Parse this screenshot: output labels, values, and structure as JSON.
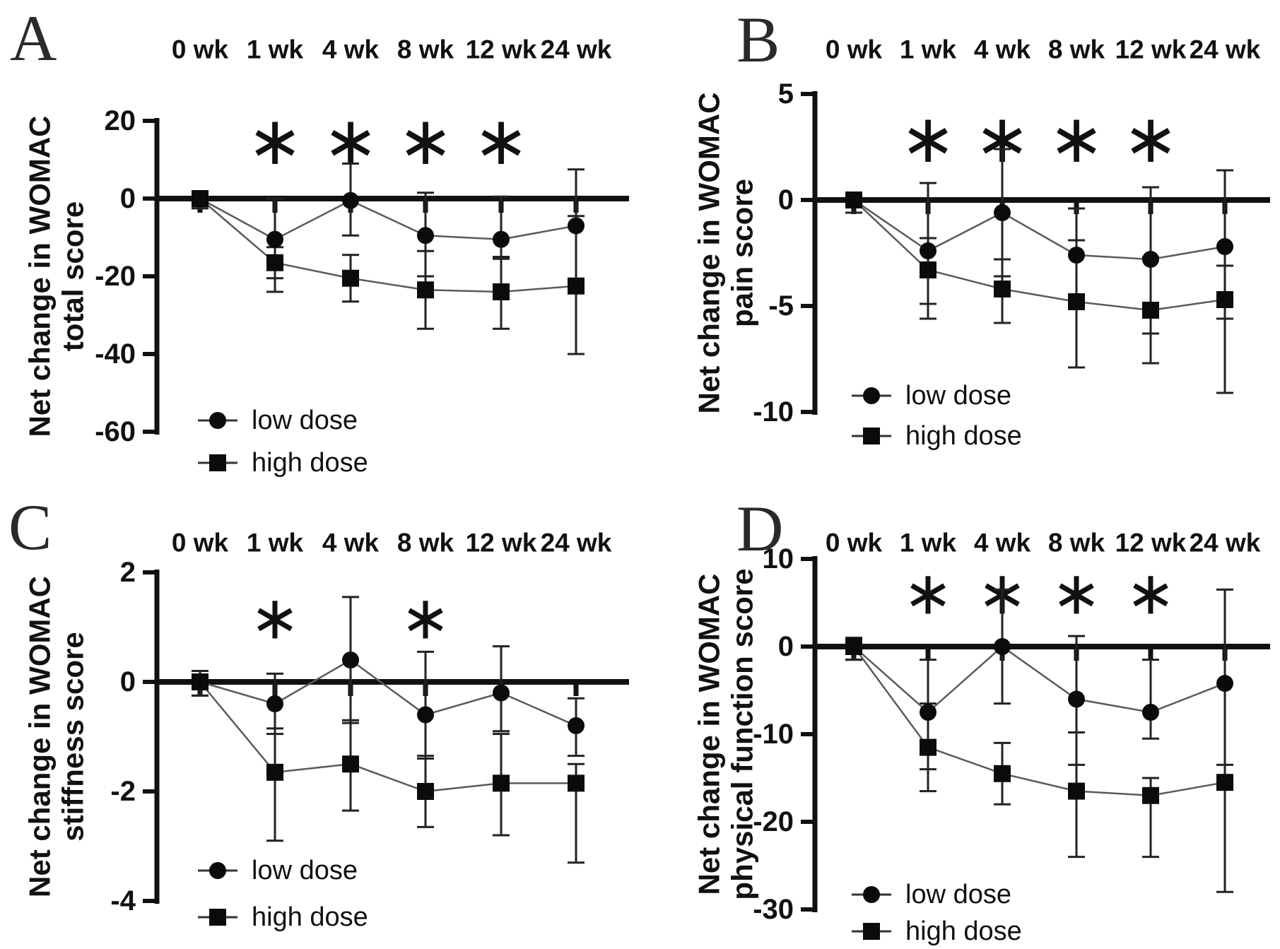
{
  "figure": {
    "sig_char": "∗",
    "colors": {
      "ink": "#111111",
      "series_line": "#5a5a5a",
      "marker_fill": "#0b0b0b",
      "background": "#ffffff"
    }
  },
  "chart_data": [
    {
      "panel": "A",
      "type": "line",
      "title": "Net change in WOMAC total score",
      "ylabel_lines": [
        "Net change in WOMAC",
        "total score"
      ],
      "x_labels": [
        "0 wk",
        "1 wk",
        "4 wk",
        "8 wk",
        "12 wk",
        "24 wk"
      ],
      "yticks": [
        20,
        0,
        -20,
        -40,
        -60
      ],
      "ylim": [
        -60,
        20
      ],
      "grid": false,
      "legend_position": "bottom-left",
      "significance_at": [
        "1 wk",
        "4 wk",
        "8 wk",
        "12 wk"
      ],
      "series": [
        {
          "name": "low dose",
          "marker": "circle",
          "values": [
            0,
            -10.5,
            -0.5,
            -9.5,
            -10.5,
            -7
          ],
          "err_upper": [
            0,
            0,
            9,
            1.5,
            0.5,
            7.5
          ],
          "err_lower": [
            -2.5,
            -20.5,
            -9.5,
            -20,
            -15.5,
            -21.5
          ]
        },
        {
          "name": "high dose",
          "marker": "square",
          "values": [
            0,
            -16.5,
            -20.5,
            -23.5,
            -24,
            -22.5
          ],
          "err_upper": [
            0,
            -12.5,
            -14.5,
            -13.5,
            -15,
            -4.5
          ],
          "err_lower": [
            -2.5,
            -24,
            -26.5,
            -33.5,
            -33.5,
            -40
          ]
        }
      ]
    },
    {
      "panel": "B",
      "type": "line",
      "title": "Net change in WOMAC pain score",
      "ylabel_lines": [
        "Net change in WOMAC",
        "pain score"
      ],
      "x_labels": [
        "0 wk",
        "1 wk",
        "4 wk",
        "8 wk",
        "12 wk",
        "24 wk"
      ],
      "yticks": [
        5,
        0,
        -5,
        -10
      ],
      "ylim": [
        -10,
        5
      ],
      "grid": false,
      "legend_position": "bottom-left",
      "significance_at": [
        "1 wk",
        "4 wk",
        "8 wk",
        "12 wk"
      ],
      "series": [
        {
          "name": "low dose",
          "marker": "circle",
          "values": [
            0,
            -2.4,
            -0.6,
            -2.6,
            -2.8,
            -2.2
          ],
          "err_upper": [
            0.3,
            0.8,
            2.4,
            -0.4,
            0.6,
            1.4
          ],
          "err_lower": [
            -0.6,
            -4.9,
            -3.6,
            -4.8,
            -6.3,
            -5.6
          ]
        },
        {
          "name": "high dose",
          "marker": "square",
          "values": [
            0,
            -3.3,
            -4.2,
            -4.8,
            -5.2,
            -4.7
          ],
          "err_upper": [
            0.3,
            -1.8,
            -2.8,
            -1.9,
            -2.7,
            -3.1
          ],
          "err_lower": [
            -0.6,
            -5.6,
            -5.8,
            -7.9,
            -7.7,
            -9.1
          ]
        }
      ]
    },
    {
      "panel": "C",
      "type": "line",
      "title": "Net change in WOMAC stiffness score",
      "ylabel_lines": [
        "Net change in WOMAC",
        "stiffness score"
      ],
      "x_labels": [
        "0 wk",
        "1 wk",
        "4 wk",
        "8 wk",
        "12 wk",
        "24 wk"
      ],
      "yticks": [
        2,
        0,
        -2,
        -4
      ],
      "ylim": [
        -4,
        2
      ],
      "grid": false,
      "legend_position": "bottom-left",
      "significance_at": [
        "1 wk",
        "8 wk"
      ],
      "series": [
        {
          "name": "low dose",
          "marker": "circle",
          "values": [
            0,
            -0.4,
            0.4,
            -0.6,
            -0.2,
            -0.8
          ],
          "err_upper": [
            0.2,
            0.15,
            1.55,
            0.55,
            0.65,
            -0.3
          ],
          "err_lower": [
            -0.25,
            -0.95,
            -0.75,
            -1.4,
            -0.9,
            -1.35
          ]
        },
        {
          "name": "high dose",
          "marker": "square",
          "values": [
            0,
            -1.65,
            -1.5,
            -2.0,
            -1.85,
            -1.85
          ],
          "err_upper": [
            0.2,
            -0.85,
            -0.7,
            -1.35,
            -0.95,
            -1.5
          ],
          "err_lower": [
            -0.25,
            -2.9,
            -2.35,
            -2.65,
            -2.8,
            -3.3
          ]
        }
      ]
    },
    {
      "panel": "D",
      "type": "line",
      "title": "Net change in WOMAC physical function score",
      "ylabel_lines": [
        "Net change in WOMAC",
        "physical function score"
      ],
      "x_labels": [
        "0 wk",
        "1 wk",
        "4 wk",
        "8 wk",
        "12 wk",
        "24 wk"
      ],
      "yticks": [
        10,
        0,
        -10,
        -20,
        -30
      ],
      "ylim": [
        -30,
        10
      ],
      "grid": false,
      "legend_position": "bottom-left",
      "significance_at": [
        "1 wk",
        "4 wk",
        "8 wk",
        "12 wk"
      ],
      "series": [
        {
          "name": "low dose",
          "marker": "circle",
          "values": [
            0,
            -7.5,
            0,
            -6,
            -7.5,
            -4.2
          ],
          "err_upper": [
            1,
            -1.5,
            6.5,
            1.2,
            -1.5,
            6.5
          ],
          "err_lower": [
            -1.5,
            -14,
            -6.5,
            -13.5,
            -10.5,
            -15.5
          ]
        },
        {
          "name": "high dose",
          "marker": "square",
          "values": [
            0,
            -11.5,
            -14.5,
            -16.5,
            -17,
            -15.5
          ],
          "err_upper": [
            1,
            -6.5,
            -11,
            -9.8,
            -15,
            -13.5
          ],
          "err_lower": [
            -1.5,
            -16.5,
            -18,
            -24,
            -24,
            -28
          ]
        }
      ]
    }
  ]
}
